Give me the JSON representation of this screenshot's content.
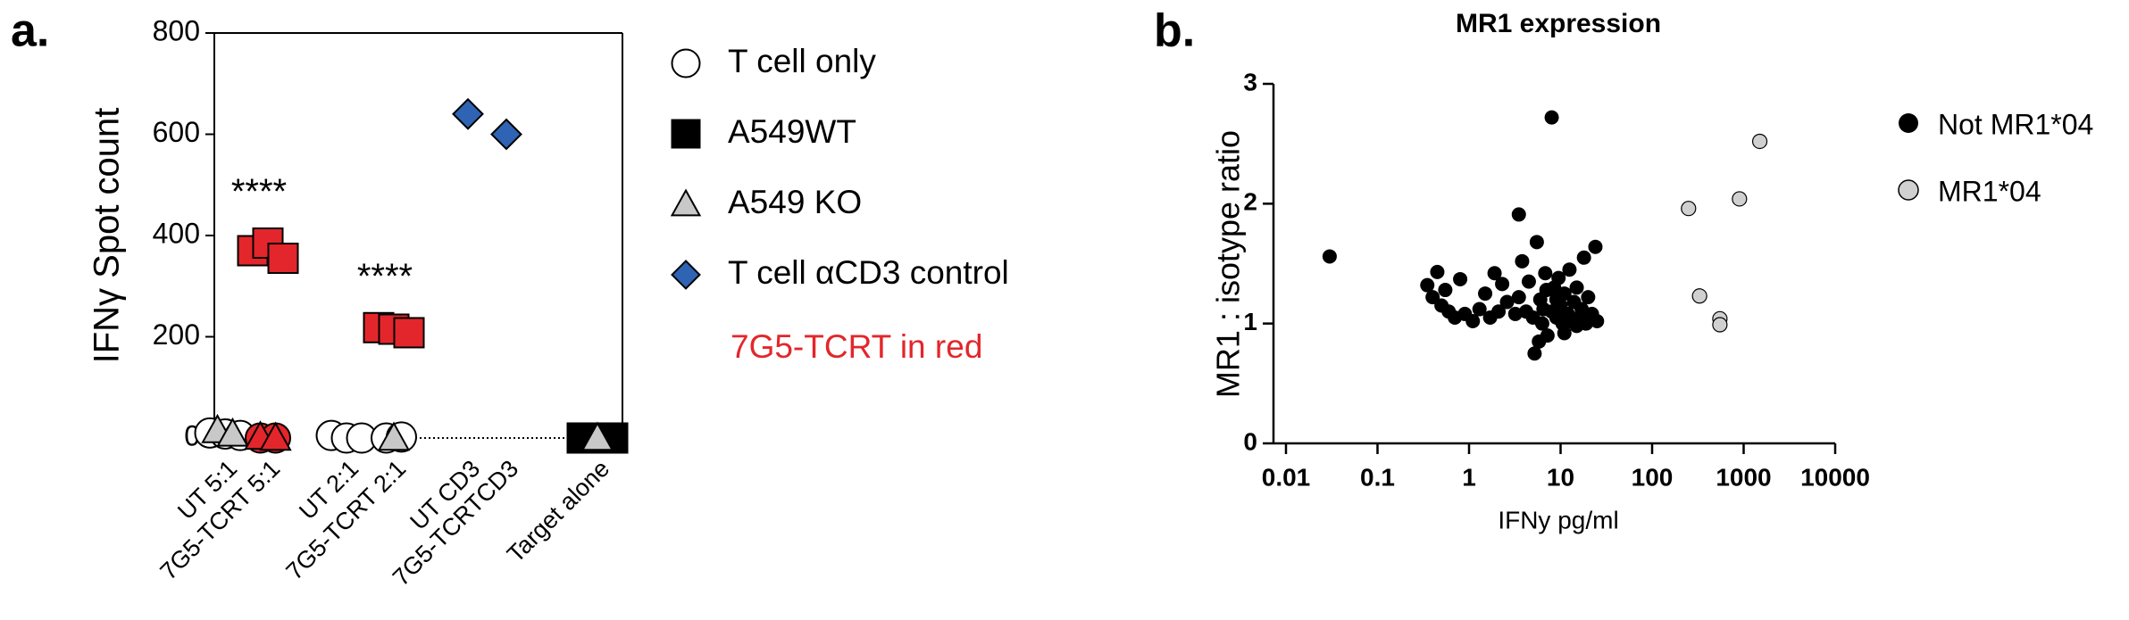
{
  "chart_data": [
    {
      "type": "dot",
      "panel_label": "a.",
      "ylabel": "IFNγ Spot count",
      "categories": [
        "UT 5:1",
        "7G5-TCRT 5:1",
        "UT 2:1",
        "7G5-TCRT 2:1",
        "UT CD3",
        "7G5-TCRTCD3",
        "Target alone"
      ],
      "ylim": [
        0,
        800
      ],
      "yticks": [
        0,
        200,
        400,
        600,
        800
      ],
      "series": [
        {
          "name": "T cell only",
          "marker": "circle",
          "color": "#ffffff",
          "x": [
            "UT 5:1",
            "UT 5:1",
            "UT 5:1",
            "7G5-TCRT 5:1",
            "7G5-TCRT 5:1",
            "UT 2:1",
            "UT 2:1",
            "UT 2:1",
            "7G5-TCRT 2:1",
            "7G5-TCRT 2:1"
          ],
          "values": [
            10,
            8,
            5,
            0,
            0,
            5,
            0,
            0,
            0,
            2
          ],
          "point_colors": [
            "#ffffff",
            "#ffffff",
            "#ffffff",
            "#e3262b",
            "#e3262b",
            "#ffffff",
            "#ffffff",
            "#ffffff",
            "#ffffff",
            "#ffffff"
          ]
        },
        {
          "name": "A549WT",
          "marker": "square",
          "color": "#000000",
          "x": [
            "7G5-TCRT 5:1",
            "7G5-TCRT 5:1",
            "7G5-TCRT 5:1",
            "7G5-TCRT 2:1",
            "7G5-TCRT 2:1",
            "7G5-TCRT 2:1",
            "Target alone",
            "Target alone",
            "Target alone"
          ],
          "values": [
            370,
            385,
            355,
            218,
            215,
            208,
            0,
            0,
            0
          ],
          "point_colors": [
            "#e3262b",
            "#e3262b",
            "#e3262b",
            "#e3262b",
            "#e3262b",
            "#e3262b",
            "#000000",
            "#000000",
            "#000000"
          ]
        },
        {
          "name": "A549 KO",
          "marker": "triangle",
          "color": "#c8c8c8",
          "x": [
            "UT 5:1",
            "UT 5:1",
            "7G5-TCRT 5:1",
            "7G5-TCRT 5:1",
            "7G5-TCRT 2:1",
            "Target alone"
          ],
          "values": [
            15,
            8,
            2,
            0,
            0,
            0
          ],
          "point_colors": [
            "#c8c8c8",
            "#c8c8c8",
            "#e3262b",
            "#e3262b",
            "#c8c8c8",
            "#c8c8c8"
          ]
        },
        {
          "name": "T cell αCD3 control",
          "marker": "diamond",
          "color": "#2f63b4",
          "x": [
            "UT CD3",
            "7G5-TCRTCD3"
          ],
          "values": [
            640,
            600
          ],
          "point_colors": [
            "#2f63b4",
            "#2f63b4"
          ]
        }
      ],
      "annotations": [
        {
          "text": "****",
          "category": "7G5-TCRT 5:1"
        },
        {
          "text": "****",
          "category": "7G5-TCRT 2:1"
        }
      ],
      "legend_note": {
        "text": "7G5-TCRT in red",
        "color": "#e3262b"
      }
    },
    {
      "type": "scatter",
      "panel_label": "b.",
      "title": "MR1 expression",
      "xlabel": "IFNy pg/ml",
      "ylabel": "MR1 : isotype ratio",
      "xscale": "log",
      "xlim": [
        0.01,
        10000
      ],
      "xticks": [
        0.01,
        0.1,
        1,
        10,
        100,
        1000,
        10000
      ],
      "ylim": [
        0,
        3
      ],
      "yticks": [
        0,
        1,
        2,
        3
      ],
      "series": [
        {
          "name": "Not MR1*04",
          "color": "#000000",
          "x": [
            0.03,
            0.35,
            0.4,
            0.45,
            0.5,
            0.55,
            0.6,
            0.7,
            0.8,
            0.9,
            1.1,
            1.3,
            1.5,
            1.7,
            1.9,
            2.1,
            2.3,
            2.6,
            3.5,
            3.2,
            3.5,
            3.8,
            4.2,
            4.5,
            5,
            5.2,
            5.5,
            5.8,
            6,
            6.3,
            6.5,
            7,
            7.2,
            8,
            8,
            8.5,
            9,
            9.5,
            10,
            10.5,
            11,
            12,
            12.5,
            13,
            14,
            15,
            16,
            17,
            18,
            19,
            20,
            22,
            24,
            25,
            15,
            11,
            9,
            6.8
          ],
          "values": [
            1.56,
            1.32,
            1.22,
            1.43,
            1.15,
            1.28,
            1.1,
            1.05,
            1.37,
            1.08,
            1.02,
            1.12,
            1.25,
            1.05,
            1.42,
            1.1,
            1.33,
            1.18,
            1.91,
            1.08,
            1.22,
            1.52,
            1.1,
            1.35,
            1.05,
            0.75,
            1.68,
            0.85,
            1.2,
            1.0,
            1.12,
            1.28,
            0.9,
            2.72,
            1.1,
            1.3,
            1.05,
            1.38,
            1.15,
            1.0,
            1.25,
            1.08,
            1.45,
            1.02,
            1.18,
            1.3,
            1.05,
            1.12,
            1.55,
            1.0,
            1.22,
            1.08,
            1.64,
            1.02,
            0.98,
            0.92,
            1.2,
            1.42
          ]
        },
        {
          "name": "MR1*04",
          "color": "#d0d0d0",
          "x": [
            1500,
            250,
            900,
            330,
            550,
            550
          ],
          "values": [
            2.52,
            1.96,
            2.04,
            1.23,
            1.04,
            0.99
          ]
        }
      ]
    }
  ]
}
